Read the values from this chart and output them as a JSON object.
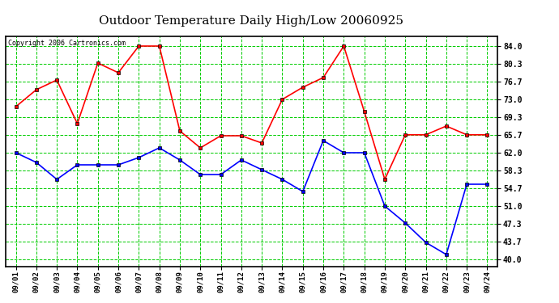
{
  "title": "Outdoor Temperature Daily High/Low 20060925",
  "copyright": "Copyright 2006 Cartronics.com",
  "x_labels": [
    "09/01",
    "09/02",
    "09/03",
    "09/04",
    "09/05",
    "09/06",
    "09/07",
    "09/08",
    "09/09",
    "09/10",
    "09/11",
    "09/12",
    "09/13",
    "09/14",
    "09/15",
    "09/16",
    "09/17",
    "09/18",
    "09/19",
    "09/20",
    "09/21",
    "09/22",
    "09/23",
    "09/24"
  ],
  "high_temps": [
    71.5,
    75.0,
    77.0,
    68.0,
    80.5,
    78.5,
    84.0,
    84.0,
    66.5,
    63.0,
    65.5,
    65.5,
    64.0,
    73.0,
    75.5,
    77.5,
    84.0,
    70.5,
    56.5,
    65.7,
    65.7,
    67.5,
    65.7,
    65.7
  ],
  "low_temps": [
    62.0,
    60.0,
    56.5,
    59.5,
    59.5,
    59.5,
    61.0,
    63.0,
    60.5,
    57.5,
    57.5,
    60.5,
    58.5,
    56.5,
    54.0,
    64.5,
    62.0,
    62.0,
    51.0,
    47.5,
    43.5,
    41.0,
    55.5,
    55.5
  ],
  "high_color": "#ff0000",
  "low_color": "#0000ff",
  "marker": "s",
  "marker_size": 3,
  "line_width": 1.2,
  "bg_color": "#ffffff",
  "plot_bg_color": "#ffffff",
  "grid_color": "#00cc00",
  "title_fontsize": 11,
  "copyright_fontsize": 6,
  "yticks": [
    40.0,
    43.7,
    47.3,
    51.0,
    54.7,
    58.3,
    62.0,
    65.7,
    69.3,
    73.0,
    76.7,
    80.3,
    84.0
  ],
  "ylim": [
    38.5,
    86.0
  ],
  "border_color": "#000000"
}
